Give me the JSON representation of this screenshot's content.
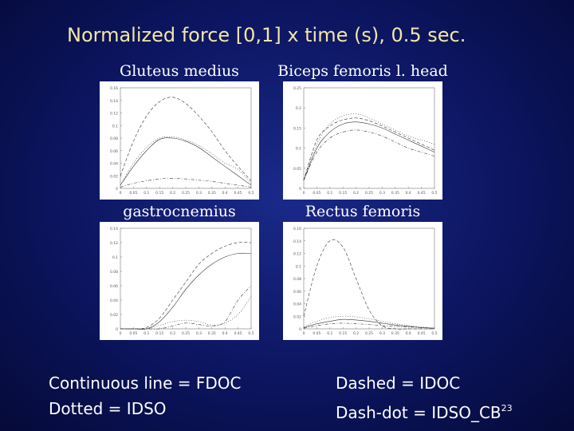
{
  "slide": {
    "title": "Normalized force [0,1] x time (s), 0.5 sec."
  },
  "legend": {
    "continuous": "Continuous line = FDOC",
    "dotted": "Dotted = IDSO",
    "dashed": "Dashed = IDOC",
    "dashdot_prefix": "Dash-dot = IDSO_CB",
    "dashdot_sup": "23"
  },
  "chart_data": [
    {
      "type": "line",
      "title": "Gluteus medius",
      "xlim": [
        0,
        0.5
      ],
      "ylim": [
        0,
        0.16
      ],
      "xticks": [
        "0",
        "0.05",
        "0.1",
        "0.15",
        "0.2",
        "0.25",
        "0.3",
        "0.35",
        "0.4",
        "0.45",
        "0.5"
      ],
      "yticks": [
        "0",
        "0.02",
        "0.04",
        "0.06",
        "0.08",
        "0.1",
        "0.12",
        "0.14",
        "0.16"
      ],
      "series": [
        {
          "style": "dashed",
          "x": [
            0,
            0.05,
            0.1,
            0.15,
            0.2,
            0.25,
            0.3,
            0.35,
            0.4,
            0.45,
            0.5
          ],
          "y": [
            0.02,
            0.075,
            0.115,
            0.138,
            0.145,
            0.135,
            0.115,
            0.09,
            0.06,
            0.035,
            0.012
          ]
        },
        {
          "style": "continuous",
          "x": [
            0,
            0.05,
            0.1,
            0.15,
            0.2,
            0.25,
            0.3,
            0.35,
            0.4,
            0.45,
            0.5
          ],
          "y": [
            0.005,
            0.035,
            0.06,
            0.078,
            0.08,
            0.075,
            0.065,
            0.05,
            0.035,
            0.02,
            0.005
          ]
        },
        {
          "style": "dotted",
          "x": [
            0,
            0.05,
            0.1,
            0.15,
            0.2,
            0.25,
            0.3,
            0.35,
            0.4,
            0.45,
            0.5
          ],
          "y": [
            0.005,
            0.04,
            0.065,
            0.08,
            0.082,
            0.077,
            0.068,
            0.055,
            0.04,
            0.03,
            0.008
          ]
        },
        {
          "style": "dashdot",
          "x": [
            0,
            0.05,
            0.1,
            0.15,
            0.2,
            0.25,
            0.3,
            0.35,
            0.4,
            0.45,
            0.5
          ],
          "y": [
            0.002,
            0.008,
            0.012,
            0.015,
            0.016,
            0.015,
            0.013,
            0.011,
            0.008,
            0.005,
            0.002
          ]
        }
      ]
    },
    {
      "type": "line",
      "title": "Biceps femoris l. head",
      "xlim": [
        0,
        0.5
      ],
      "ylim": [
        0,
        0.25
      ],
      "xticks": [
        "0",
        "0.05",
        "0.1",
        "0.15",
        "0.2",
        "0.25",
        "0.3",
        "0.35",
        "0.4",
        "0.45",
        "0.5"
      ],
      "yticks": [
        "0",
        "0.05",
        "0.1",
        "0.15",
        "0.2",
        "0.25"
      ],
      "series": [
        {
          "style": "continuous",
          "x": [
            0,
            0.05,
            0.1,
            0.15,
            0.2,
            0.25,
            0.3,
            0.35,
            0.4,
            0.45,
            0.5
          ],
          "y": [
            0.02,
            0.1,
            0.14,
            0.16,
            0.165,
            0.16,
            0.15,
            0.135,
            0.12,
            0.105,
            0.09
          ]
        },
        {
          "style": "dotted",
          "x": [
            0,
            0.05,
            0.1,
            0.15,
            0.2,
            0.25,
            0.3,
            0.35,
            0.4,
            0.45,
            0.5
          ],
          "y": [
            0.02,
            0.11,
            0.16,
            0.18,
            0.185,
            0.175,
            0.16,
            0.145,
            0.13,
            0.12,
            0.11
          ]
        },
        {
          "style": "dashed",
          "x": [
            0,
            0.05,
            0.1,
            0.15,
            0.2,
            0.25,
            0.3,
            0.35,
            0.4,
            0.45,
            0.5
          ],
          "y": [
            0.02,
            0.12,
            0.155,
            0.17,
            0.175,
            0.168,
            0.155,
            0.14,
            0.125,
            0.11,
            0.095
          ]
        },
        {
          "style": "dashdot",
          "x": [
            0,
            0.05,
            0.1,
            0.15,
            0.2,
            0.25,
            0.3,
            0.35,
            0.4,
            0.45,
            0.5
          ],
          "y": [
            0.02,
            0.09,
            0.125,
            0.14,
            0.145,
            0.14,
            0.13,
            0.115,
            0.1,
            0.09,
            0.08
          ]
        }
      ]
    },
    {
      "type": "line",
      "title": "gastrocnemius",
      "xlim": [
        0,
        0.5
      ],
      "ylim": [
        0,
        0.14
      ],
      "xticks": [
        "0",
        "0.05",
        "0.1",
        "0.15",
        "0.2",
        "0.25",
        "0.3",
        "0.35",
        "0.4",
        "0.45",
        "0.5"
      ],
      "yticks": [
        "0",
        "0.02",
        "0.04",
        "0.06",
        "0.08",
        "0.1",
        "0.12",
        "0.14"
      ],
      "series": [
        {
          "style": "continuous",
          "x": [
            0,
            0.05,
            0.1,
            0.15,
            0.2,
            0.25,
            0.3,
            0.35,
            0.4,
            0.45,
            0.5
          ],
          "y": [
            0,
            0,
            0,
            0.01,
            0.03,
            0.055,
            0.075,
            0.09,
            0.1,
            0.105,
            0.105
          ]
        },
        {
          "style": "dashed",
          "x": [
            0,
            0.05,
            0.1,
            0.15,
            0.2,
            0.25,
            0.3,
            0.35,
            0.4,
            0.45,
            0.5
          ],
          "y": [
            0,
            0,
            0.002,
            0.015,
            0.04,
            0.065,
            0.09,
            0.105,
            0.115,
            0.12,
            0.12
          ]
        },
        {
          "style": "dotted",
          "x": [
            0,
            0.05,
            0.1,
            0.15,
            0.2,
            0.25,
            0.3,
            0.35,
            0.4,
            0.45,
            0.5
          ],
          "y": [
            0,
            0,
            0,
            0.005,
            0.01,
            0.012,
            0.01,
            0.005,
            0.008,
            0.02,
            0.045
          ]
        },
        {
          "style": "dashdot",
          "x": [
            0,
            0.05,
            0.1,
            0.15,
            0.2,
            0.25,
            0.3,
            0.35,
            0.4,
            0.45,
            0.5
          ],
          "y": [
            0,
            0,
            0,
            0,
            0.004,
            0.008,
            0.006,
            0.004,
            0.01,
            0.04,
            0.06
          ]
        }
      ]
    },
    {
      "type": "line",
      "title": "Rectus femoris",
      "xlim": [
        0,
        0.5
      ],
      "ylim": [
        0,
        0.16
      ],
      "xticks": [
        "0",
        "0.05",
        "0.1",
        "0.15",
        "0.2",
        "0.25",
        "0.3",
        "0.35",
        "0.4",
        "0.45",
        "0.5"
      ],
      "yticks": [
        "0",
        "0.02",
        "0.04",
        "0.06",
        "0.08",
        "0.1",
        "0.12",
        "0.14",
        "0.16"
      ],
      "series": [
        {
          "style": "dashed",
          "x": [
            0,
            0.05,
            0.1,
            0.15,
            0.2,
            0.25,
            0.3,
            0.35,
            0.4,
            0.45,
            0.5
          ],
          "y": [
            0.02,
            0.1,
            0.14,
            0.13,
            0.08,
            0.03,
            0.005,
            0,
            0,
            0,
            0
          ]
        },
        {
          "style": "continuous",
          "x": [
            0,
            0.05,
            0.1,
            0.15,
            0.2,
            0.25,
            0.3,
            0.35,
            0.4,
            0.45,
            0.5
          ],
          "y": [
            0.002,
            0.008,
            0.012,
            0.015,
            0.014,
            0.012,
            0.009,
            0.006,
            0.004,
            0.002,
            0.001
          ]
        },
        {
          "style": "dotted",
          "x": [
            0,
            0.05,
            0.1,
            0.15,
            0.2,
            0.25,
            0.3,
            0.35,
            0.4,
            0.45,
            0.5
          ],
          "y": [
            0.003,
            0.012,
            0.018,
            0.02,
            0.019,
            0.016,
            0.012,
            0.008,
            0.005,
            0.003,
            0.001
          ]
        },
        {
          "style": "dashdot",
          "x": [
            0,
            0.05,
            0.1,
            0.15,
            0.2,
            0.25,
            0.3,
            0.35,
            0.4,
            0.45,
            0.5
          ],
          "y": [
            0.001,
            0.005,
            0.008,
            0.009,
            0.008,
            0.007,
            0.005,
            0.004,
            0.003,
            0.002,
            0.001
          ]
        }
      ]
    }
  ]
}
